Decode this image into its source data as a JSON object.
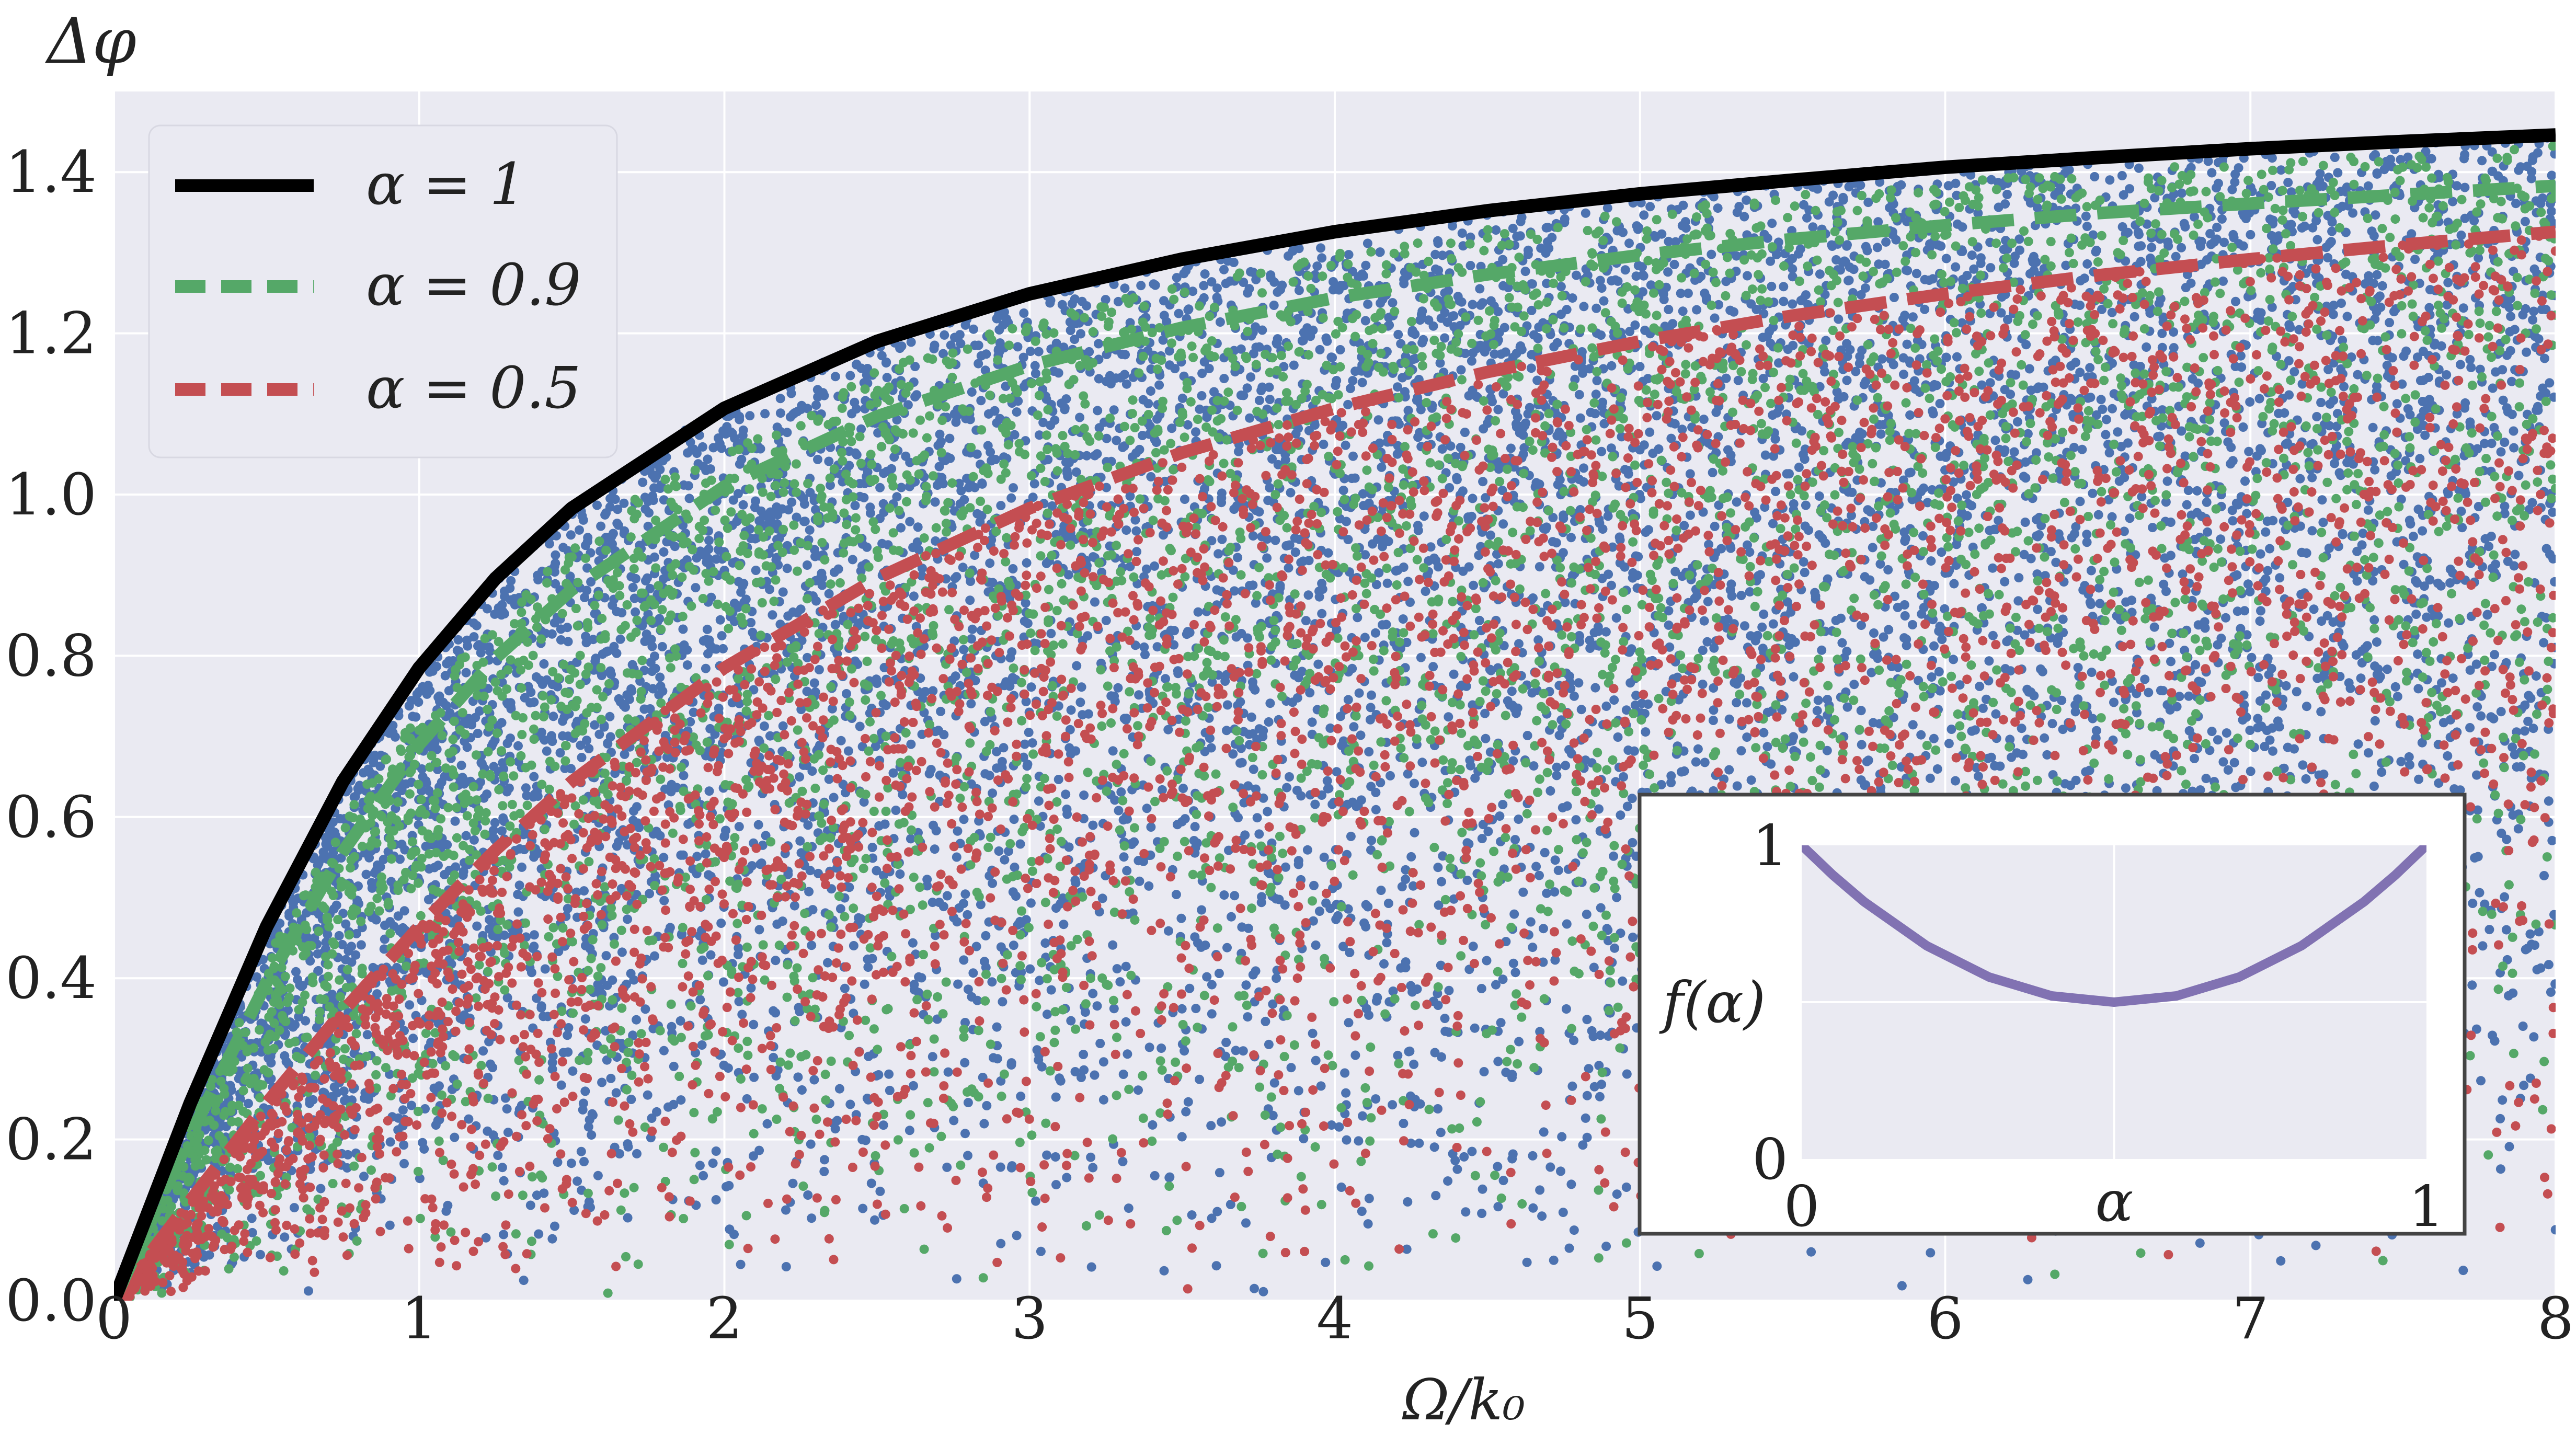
{
  "chart_data": [
    {
      "type": "scatter",
      "title": "",
      "xlabel": "Ω/k₀",
      "ylabel": "Δφ",
      "xlim": [
        0,
        8
      ],
      "ylim": [
        0,
        1.5
      ],
      "x_ticks": [
        0,
        1,
        2,
        3,
        4,
        5,
        6,
        7,
        8
      ],
      "x_tick_labels": [
        "0",
        "1",
        "2",
        "3",
        "4",
        "5",
        "6",
        "7",
        "8"
      ],
      "y_ticks": [
        0.0,
        0.2,
        0.4,
        0.6,
        0.8,
        1.0,
        1.2,
        1.4
      ],
      "y_tick_labels": [
        "0.0",
        "0.2",
        "0.4",
        "0.6",
        "0.8",
        "1.0",
        "1.2",
        "1.4"
      ],
      "grid": true,
      "legend_position": "top-left",
      "series": [
        {
          "name": "α = 1",
          "kind": "line",
          "style": "solid",
          "color": "#000000",
          "x": [
            0,
            0.25,
            0.5,
            0.75,
            1,
            1.25,
            1.5,
            2,
            2.5,
            3,
            3.5,
            4,
            4.5,
            5,
            5.5,
            6,
            6.5,
            7,
            7.5,
            8
          ],
          "y": [
            0,
            0.245,
            0.464,
            0.644,
            0.785,
            0.896,
            0.983,
            1.107,
            1.19,
            1.249,
            1.292,
            1.326,
            1.352,
            1.373,
            1.39,
            1.406,
            1.418,
            1.429,
            1.438,
            1.446
          ]
        },
        {
          "name": "α = 0.9",
          "kind": "line",
          "style": "dashed",
          "color": "#55A868",
          "x": [
            0,
            0.25,
            0.5,
            0.75,
            1,
            1.25,
            1.5,
            2,
            2.5,
            3,
            3.5,
            4,
            4.5,
            5,
            5.5,
            6,
            6.5,
            7,
            7.5,
            8
          ],
          "y": [
            0,
            0.205,
            0.395,
            0.557,
            0.69,
            0.797,
            0.882,
            1.01,
            1.097,
            1.16,
            1.207,
            1.244,
            1.273,
            1.297,
            1.317,
            1.334,
            1.349,
            1.361,
            1.372,
            1.383
          ]
        },
        {
          "name": "α = 0.5",
          "kind": "line",
          "style": "dashed",
          "color": "#C44E52",
          "x": [
            0,
            0.25,
            0.5,
            0.75,
            1,
            1.25,
            1.5,
            2,
            2.5,
            3,
            3.5,
            4,
            4.5,
            5,
            5.5,
            6,
            6.5,
            7,
            7.5,
            8
          ],
          "y": [
            0,
            0.124,
            0.245,
            0.359,
            0.464,
            0.559,
            0.644,
            0.785,
            0.896,
            0.983,
            1.052,
            1.107,
            1.152,
            1.19,
            1.222,
            1.249,
            1.272,
            1.292,
            1.31,
            1.326
          ]
        }
      ],
      "scatter_clouds": [
        {
          "color": "#4C72B0",
          "upper_alpha": 1.0,
          "count": 9000
        },
        {
          "color": "#55A868",
          "upper_alpha": 0.9,
          "count": 5000
        },
        {
          "color": "#C44E52",
          "upper_alpha": 0.5,
          "count": 4000
        }
      ],
      "colors": {
        "background": "#EAEAF2",
        "grid": "#FFFFFF",
        "scatter_blue": "#4C72B0",
        "scatter_green": "#55A868",
        "scatter_red": "#C44E52"
      }
    },
    {
      "type": "line",
      "title": "",
      "xlabel": "α",
      "ylabel": "f(α)",
      "xlim": [
        0,
        1
      ],
      "ylim": [
        0,
        1
      ],
      "x_tick_labels": [
        "0",
        "1"
      ],
      "y_tick_labels": [
        "0",
        "1"
      ],
      "grid": true,
      "position": "bottom-right inset",
      "series": [
        {
          "color": "#8172B2",
          "x": [
            0,
            0.05,
            0.1,
            0.2,
            0.3,
            0.4,
            0.5,
            0.6,
            0.7,
            0.8,
            0.9,
            0.95,
            1
          ],
          "y": [
            1.0,
            0.905,
            0.82,
            0.68,
            0.58,
            0.52,
            0.5,
            0.52,
            0.58,
            0.68,
            0.82,
            0.905,
            1.0
          ]
        }
      ]
    }
  ]
}
